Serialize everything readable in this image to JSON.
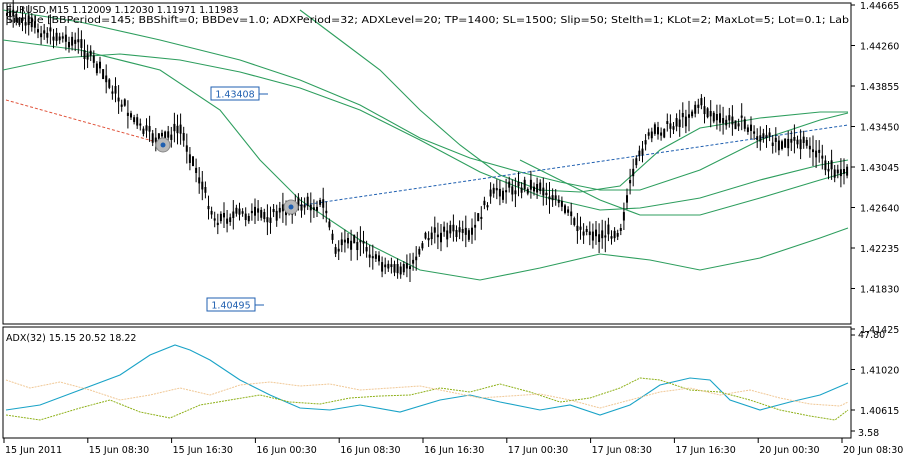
{
  "main": {
    "title": "EURUSD,M15  1.12009 1.12030 1.11971 1.11983",
    "ea_label": "Simple [BBPeriod=145; BBShift=0; BBDev=1.0; ADXPeriod=32; ADXLevel=20; TP=1400; SL=1500; Slip=50; Stelth=1; KLot=2; MaxLot=5; Lot=0.1; Lab",
    "price_ticks": [
      "1.44665",
      "1.44260",
      "1.43855",
      "1.43450",
      "1.43045",
      "1.42640",
      "1.42235",
      "1.41830",
      "1.41425",
      "1.41020",
      "1.40615"
    ],
    "level_labels": [
      "1.43408",
      "1.40495"
    ]
  },
  "adx": {
    "title": "ADX(32) 15.15 20.52 18.22",
    "top_tick": "47.80",
    "bottom_tick": "3.58"
  },
  "time_axis": {
    "labels": [
      "15 Jun 2011",
      "15 Jun 08:30",
      "15 Jun 16:30",
      "16 Jun 00:30",
      "16 Jun 08:30",
      "16 Jun 16:30",
      "17 Jun 00:30",
      "17 Jun 08:30",
      "17 Jun 16:30",
      "20 Jun 00:30",
      "20 Jun 08:30"
    ]
  },
  "colors": {
    "candle": "#000000",
    "bollinger": "#2e9e5e",
    "adx_main": "#1aa3c7",
    "plus_di": "#8fb11a",
    "minus_di": "#f0c896",
    "trend_blue": "#1f5fb0",
    "trend_red": "#e0523a"
  }
}
